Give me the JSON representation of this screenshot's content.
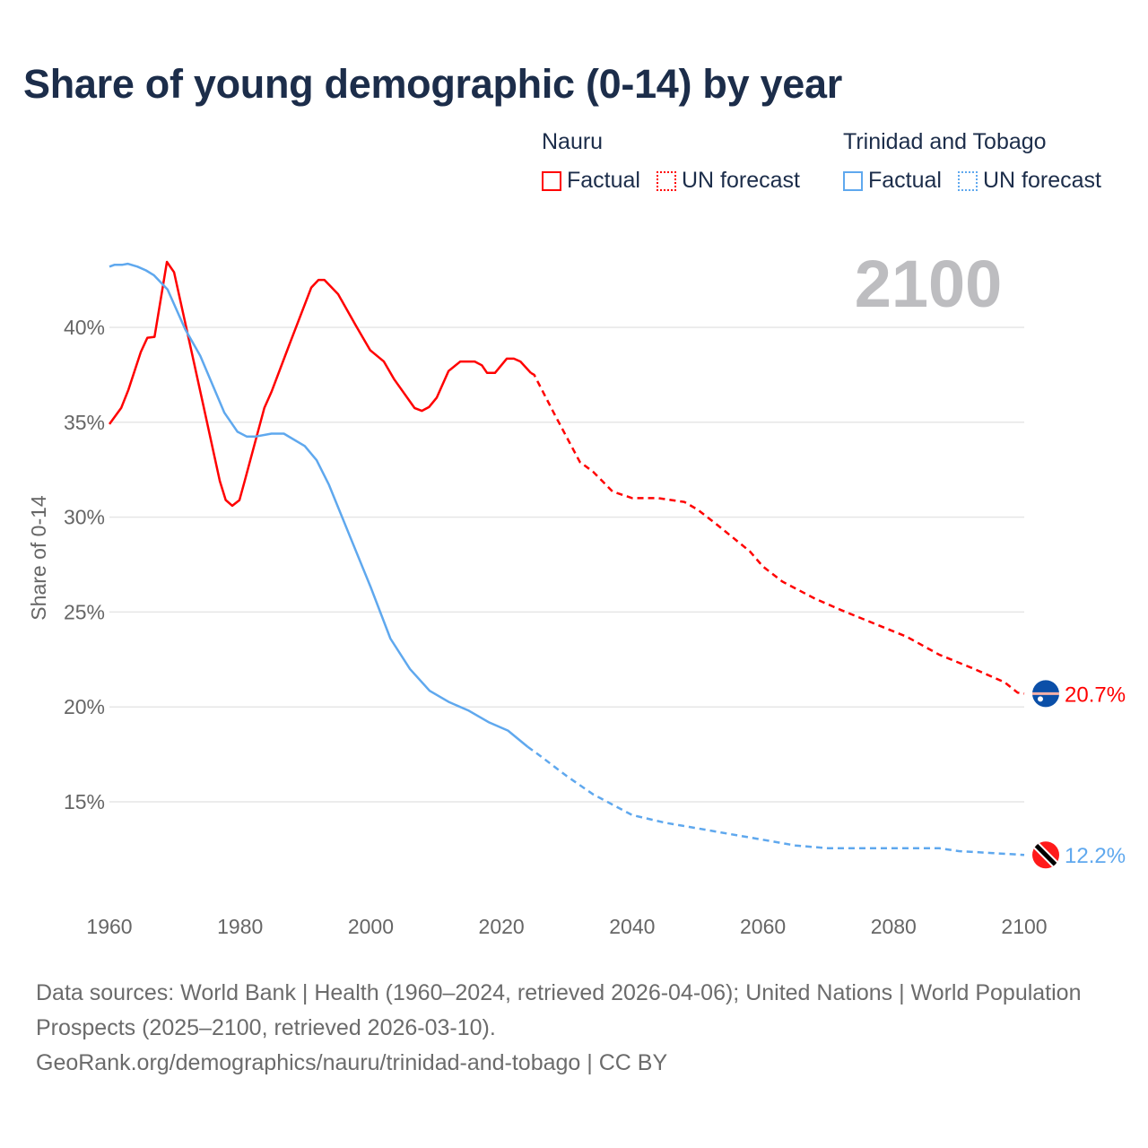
{
  "title": "Share of young demographic (0-14) by year",
  "legend": [
    {
      "group": "Nauru",
      "factual": "Factual",
      "forecast": "UN forecast",
      "color": "#ff0000"
    },
    {
      "group": "Trinidad and Tobago",
      "factual": "Factual",
      "forecast": "UN forecast",
      "color": "#5fa8ee"
    }
  ],
  "year_display": "2100",
  "footer": {
    "sources": "Data sources: World Bank | Health (1960–2024, retrieved 2026-04-06); United Nations | World Population Prospects (2025–2100, retrieved 2026-03-10).",
    "credit": "GeoRank.org/demographics/nauru/trinidad-and-tobago | CC BY"
  },
  "chart_data": {
    "type": "line",
    "title": "Share of young demographic (0-14) by year",
    "xlabel": "",
    "ylabel": "Share of 0-14",
    "xlim": [
      1960,
      2100
    ],
    "ylim": [
      10,
      45
    ],
    "x_ticks": [
      "1960",
      "1980",
      "2000",
      "2020",
      "2040",
      "2060",
      "2080",
      "2100"
    ],
    "y_ticks": [
      {
        "v": 40,
        "label": "40%"
      },
      {
        "v": 35,
        "label": "35%"
      },
      {
        "v": 30,
        "label": "30%"
      },
      {
        "v": 25,
        "label": "25%"
      },
      {
        "v": 20,
        "label": "20%"
      },
      {
        "v": 15,
        "label": "15%"
      }
    ],
    "grid": true,
    "series": [
      {
        "name": "Nauru",
        "color": "#ff0000",
        "end_label": "20.7%",
        "flag": "nauru",
        "factual": [
          [
            1960,
            34.9
          ],
          [
            1961.8,
            35.75
          ],
          [
            1962.9,
            36.7
          ],
          [
            1964.8,
            38.7
          ],
          [
            1965.8,
            39.45
          ],
          [
            1966.9,
            39.5
          ],
          [
            1968.8,
            43.45
          ],
          [
            1969.9,
            42.9
          ],
          [
            1972.1,
            39.45
          ],
          [
            1974.4,
            35.85
          ],
          [
            1976.9,
            31.9
          ],
          [
            1977.8,
            30.9
          ],
          [
            1978.8,
            30.6
          ],
          [
            1979.9,
            30.9
          ],
          [
            1980.7,
            31.9
          ],
          [
            1983.7,
            35.75
          ],
          [
            1984.8,
            36.6
          ],
          [
            1987.6,
            39.15
          ],
          [
            1990.9,
            42.1
          ],
          [
            1992,
            42.5
          ],
          [
            1992.9,
            42.5
          ],
          [
            1995,
            41.75
          ],
          [
            1997.7,
            40.1
          ],
          [
            1999.9,
            38.8
          ],
          [
            2002,
            38.2
          ],
          [
            2003.6,
            37.25
          ],
          [
            2006.7,
            35.75
          ],
          [
            2007.8,
            35.6
          ],
          [
            2008.9,
            35.8
          ],
          [
            2010.1,
            36.3
          ],
          [
            2011.9,
            37.7
          ],
          [
            2013.7,
            38.2
          ],
          [
            2015.9,
            38.2
          ],
          [
            2017,
            38.0
          ],
          [
            2017.8,
            37.6
          ],
          [
            2019,
            37.6
          ],
          [
            2020.8,
            38.35
          ],
          [
            2021.9,
            38.35
          ],
          [
            2022.9,
            38.2
          ],
          [
            2024.5,
            37.6
          ]
        ],
        "forecast": [
          [
            2024.5,
            37.6
          ],
          [
            2025,
            37.5
          ],
          [
            2028,
            35.5
          ],
          [
            2032,
            32.9
          ],
          [
            2034,
            32.4
          ],
          [
            2037,
            31.35
          ],
          [
            2040,
            31.0
          ],
          [
            2044,
            31.0
          ],
          [
            2048,
            30.8
          ],
          [
            2050,
            30.4
          ],
          [
            2053,
            29.6
          ],
          [
            2058,
            28.2
          ],
          [
            2060,
            27.4
          ],
          [
            2063,
            26.6
          ],
          [
            2068,
            25.7
          ],
          [
            2072,
            25.1
          ],
          [
            2077,
            24.4
          ],
          [
            2082,
            23.7
          ],
          [
            2087,
            22.75
          ],
          [
            2092,
            22.05
          ],
          [
            2097,
            21.3
          ],
          [
            2099,
            20.75
          ],
          [
            2100,
            20.7
          ]
        ]
      },
      {
        "name": "Trinidad and Tobago",
        "color": "#5fa8ee",
        "end_label": "12.2%",
        "flag": "trinidad-and-tobago",
        "factual": [
          [
            1960,
            43.2
          ],
          [
            1960.8,
            43.3
          ],
          [
            1962,
            43.3
          ],
          [
            1962.8,
            43.35
          ],
          [
            1964.3,
            43.2
          ],
          [
            1965.6,
            43.0
          ],
          [
            1966.8,
            42.75
          ],
          [
            1968.9,
            42.0
          ],
          [
            1971.6,
            39.9
          ],
          [
            1973.9,
            38.5
          ],
          [
            1977.6,
            35.5
          ],
          [
            1979.6,
            34.5
          ],
          [
            1981,
            34.25
          ],
          [
            1982.4,
            34.25
          ],
          [
            1984.8,
            34.4
          ],
          [
            1986.7,
            34.4
          ],
          [
            1989.9,
            33.75
          ],
          [
            1991.7,
            33.0
          ],
          [
            1993.6,
            31.7
          ],
          [
            1996.8,
            29.0
          ],
          [
            2000,
            26.3
          ],
          [
            2003,
            23.6
          ],
          [
            2006,
            22.0
          ],
          [
            2009,
            20.85
          ],
          [
            2012,
            20.25
          ],
          [
            2015,
            19.8
          ],
          [
            2018,
            19.2
          ],
          [
            2021,
            18.75
          ],
          [
            2024,
            17.9
          ]
        ],
        "forecast": [
          [
            2024,
            17.9
          ],
          [
            2026,
            17.4
          ],
          [
            2030,
            16.35
          ],
          [
            2034,
            15.4
          ],
          [
            2040,
            14.3
          ],
          [
            2045,
            13.9
          ],
          [
            2050,
            13.6
          ],
          [
            2055,
            13.3
          ],
          [
            2060,
            13.0
          ],
          [
            2065,
            12.7
          ],
          [
            2070,
            12.55
          ],
          [
            2080,
            12.55
          ],
          [
            2087,
            12.55
          ],
          [
            2090,
            12.4
          ],
          [
            2095,
            12.3
          ],
          [
            2100,
            12.2
          ]
        ]
      }
    ]
  }
}
